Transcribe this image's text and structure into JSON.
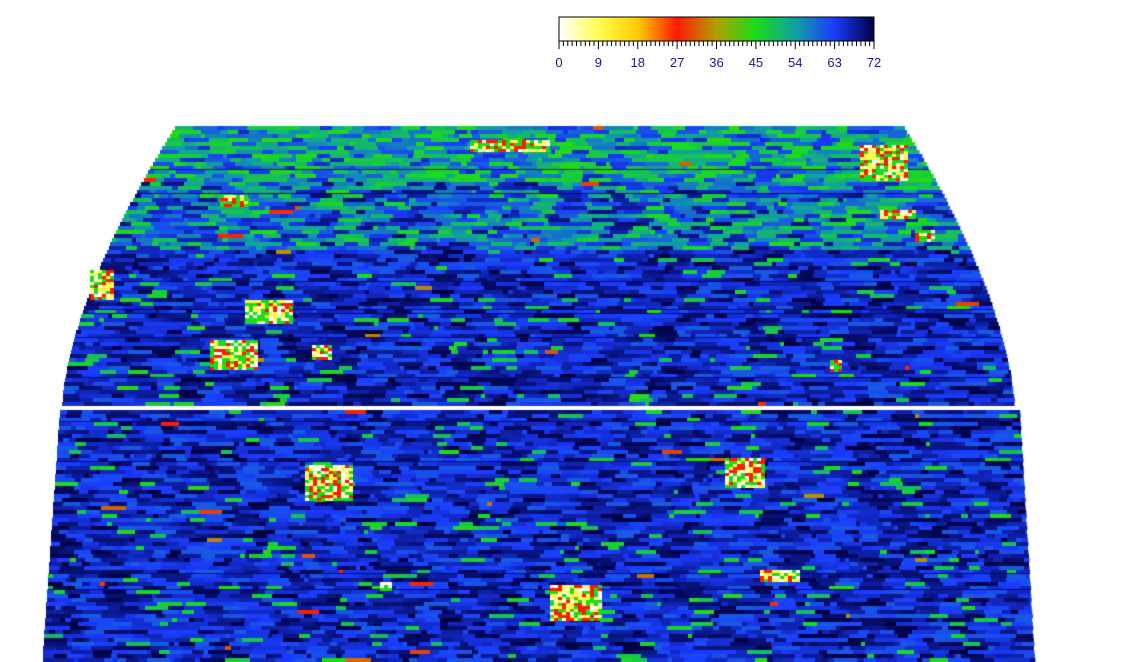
{
  "chart_data": {
    "type": "heatmap",
    "title": "",
    "xlabel": "",
    "ylabel": "",
    "colorbar": {
      "range": [
        0,
        72
      ],
      "ticks": [
        0,
        9,
        18,
        27,
        36,
        45,
        54,
        63,
        72
      ],
      "tick_labels": [
        "0",
        "9",
        "18",
        "27",
        "36",
        "45",
        "54",
        "63",
        "72"
      ],
      "stops": [
        {
          "value": 0,
          "color": "#ffffff"
        },
        {
          "value": 9,
          "color": "#ffff55"
        },
        {
          "value": 18,
          "color": "#ffcc00"
        },
        {
          "value": 27,
          "color": "#ff1a00"
        },
        {
          "value": 36,
          "color": "#b0a000"
        },
        {
          "value": 45,
          "color": "#1adc1a"
        },
        {
          "value": 54,
          "color": "#10a0a0"
        },
        {
          "value": 63,
          "color": "#1a3cff"
        },
        {
          "value": 72,
          "color": "#000040"
        }
      ]
    },
    "grid": false,
    "legend": "top"
  }
}
